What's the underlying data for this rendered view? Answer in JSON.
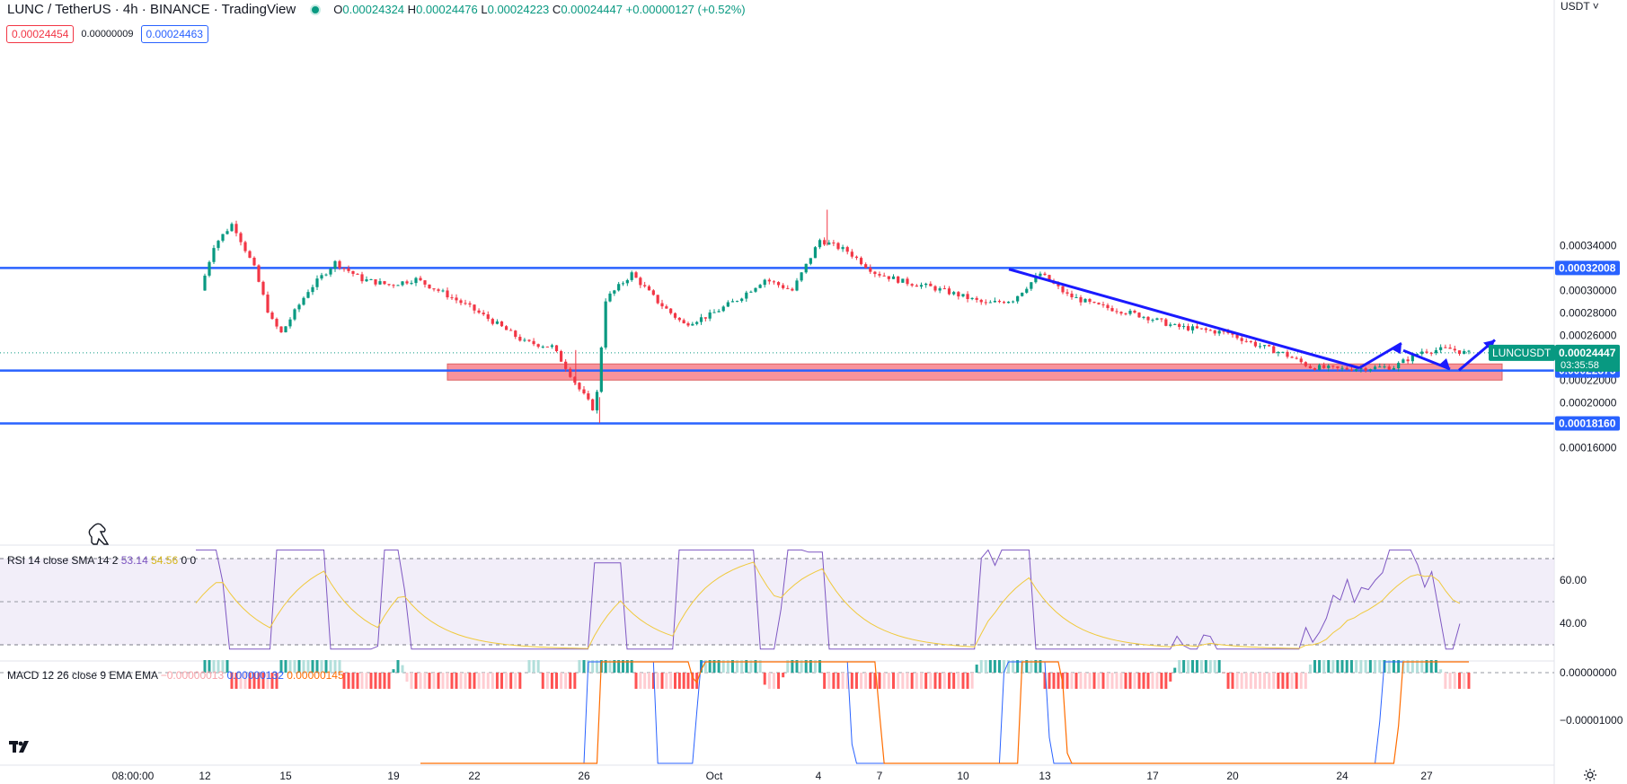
{
  "header": {
    "symbol": "LUNC / TetherUS · 4h · BINANCE · TradingView",
    "o_label": "O",
    "o_value": "0.00024324",
    "h_label": "H",
    "h_value": "0.00024476",
    "l_label": "L",
    "l_value": "0.00024223",
    "c_label": "C",
    "c_value": "0.00024447",
    "change": "+0.00000127 (+0.52%)"
  },
  "quote": {
    "sell": "0.00024454",
    "spread": "0.00000009",
    "buy": "0.00024463"
  },
  "currency_label": "USDT",
  "colors": {
    "up": "#089981",
    "down": "#f23645",
    "level": "#2962ff",
    "drawing": "#1a1aff",
    "zone": "#f7707a",
    "rsi": "#7e57c2",
    "rsi_sma": "#f0c93c",
    "macd": "#2962ff",
    "signal": "#ff6d00"
  },
  "chart_data": [
    {
      "type": "candlestick",
      "title": "LUNC / TetherUS",
      "timeframe": "4h",
      "x_ticks": [
        "08:00:00",
        "12",
        "15",
        "19",
        "22",
        "26",
        "Oct",
        "4",
        "7",
        "10",
        "13",
        "17",
        "20",
        "24",
        "27"
      ],
      "y_ticks": [
        "0.00034000",
        "0.00030000",
        "0.00028000",
        "0.00026000",
        "0.00022000",
        "0.00020000",
        "0.00016000"
      ],
      "ylim": [
        0.000145,
        0.000365
      ],
      "last_price": "0.00024447",
      "last_price_symbol": "LUNCUSDT",
      "countdown": "03:35:58",
      "horizontal_levels": [
        "0.00032008",
        "0.00022875",
        "0.00018160"
      ],
      "support_zone": [
        0.000225,
        0.000233
      ],
      "trend_line": [
        [
          "10",
          0.000319
        ],
        [
          "24",
          0.000231
        ]
      ],
      "projection_arrows": true
    },
    {
      "type": "line",
      "title": "RSI",
      "legend": "RSI 14 close SMA 14 2",
      "values_display": {
        "rsi": "53.14",
        "sma": "54.56",
        "a": "0",
        "b": "0"
      },
      "y_ticks": [
        "60.00",
        "40.00"
      ],
      "bands": [
        30,
        70
      ],
      "ylim": [
        25,
        75
      ],
      "series": [
        {
          "name": "RSI"
        },
        {
          "name": "SMA"
        }
      ]
    },
    {
      "type": "bar",
      "title": "MACD",
      "legend": "MACD 12 26 close 9 EMA EMA",
      "values_display": {
        "hist": "−0.00000013",
        "macd": "0.00000132",
        "signal": "0.00000145"
      },
      "y_ticks": [
        "0.00000000",
        "−0.00001000"
      ],
      "series": [
        {
          "name": "Histogram"
        },
        {
          "name": "MACD"
        },
        {
          "name": "Signal"
        }
      ]
    }
  ]
}
